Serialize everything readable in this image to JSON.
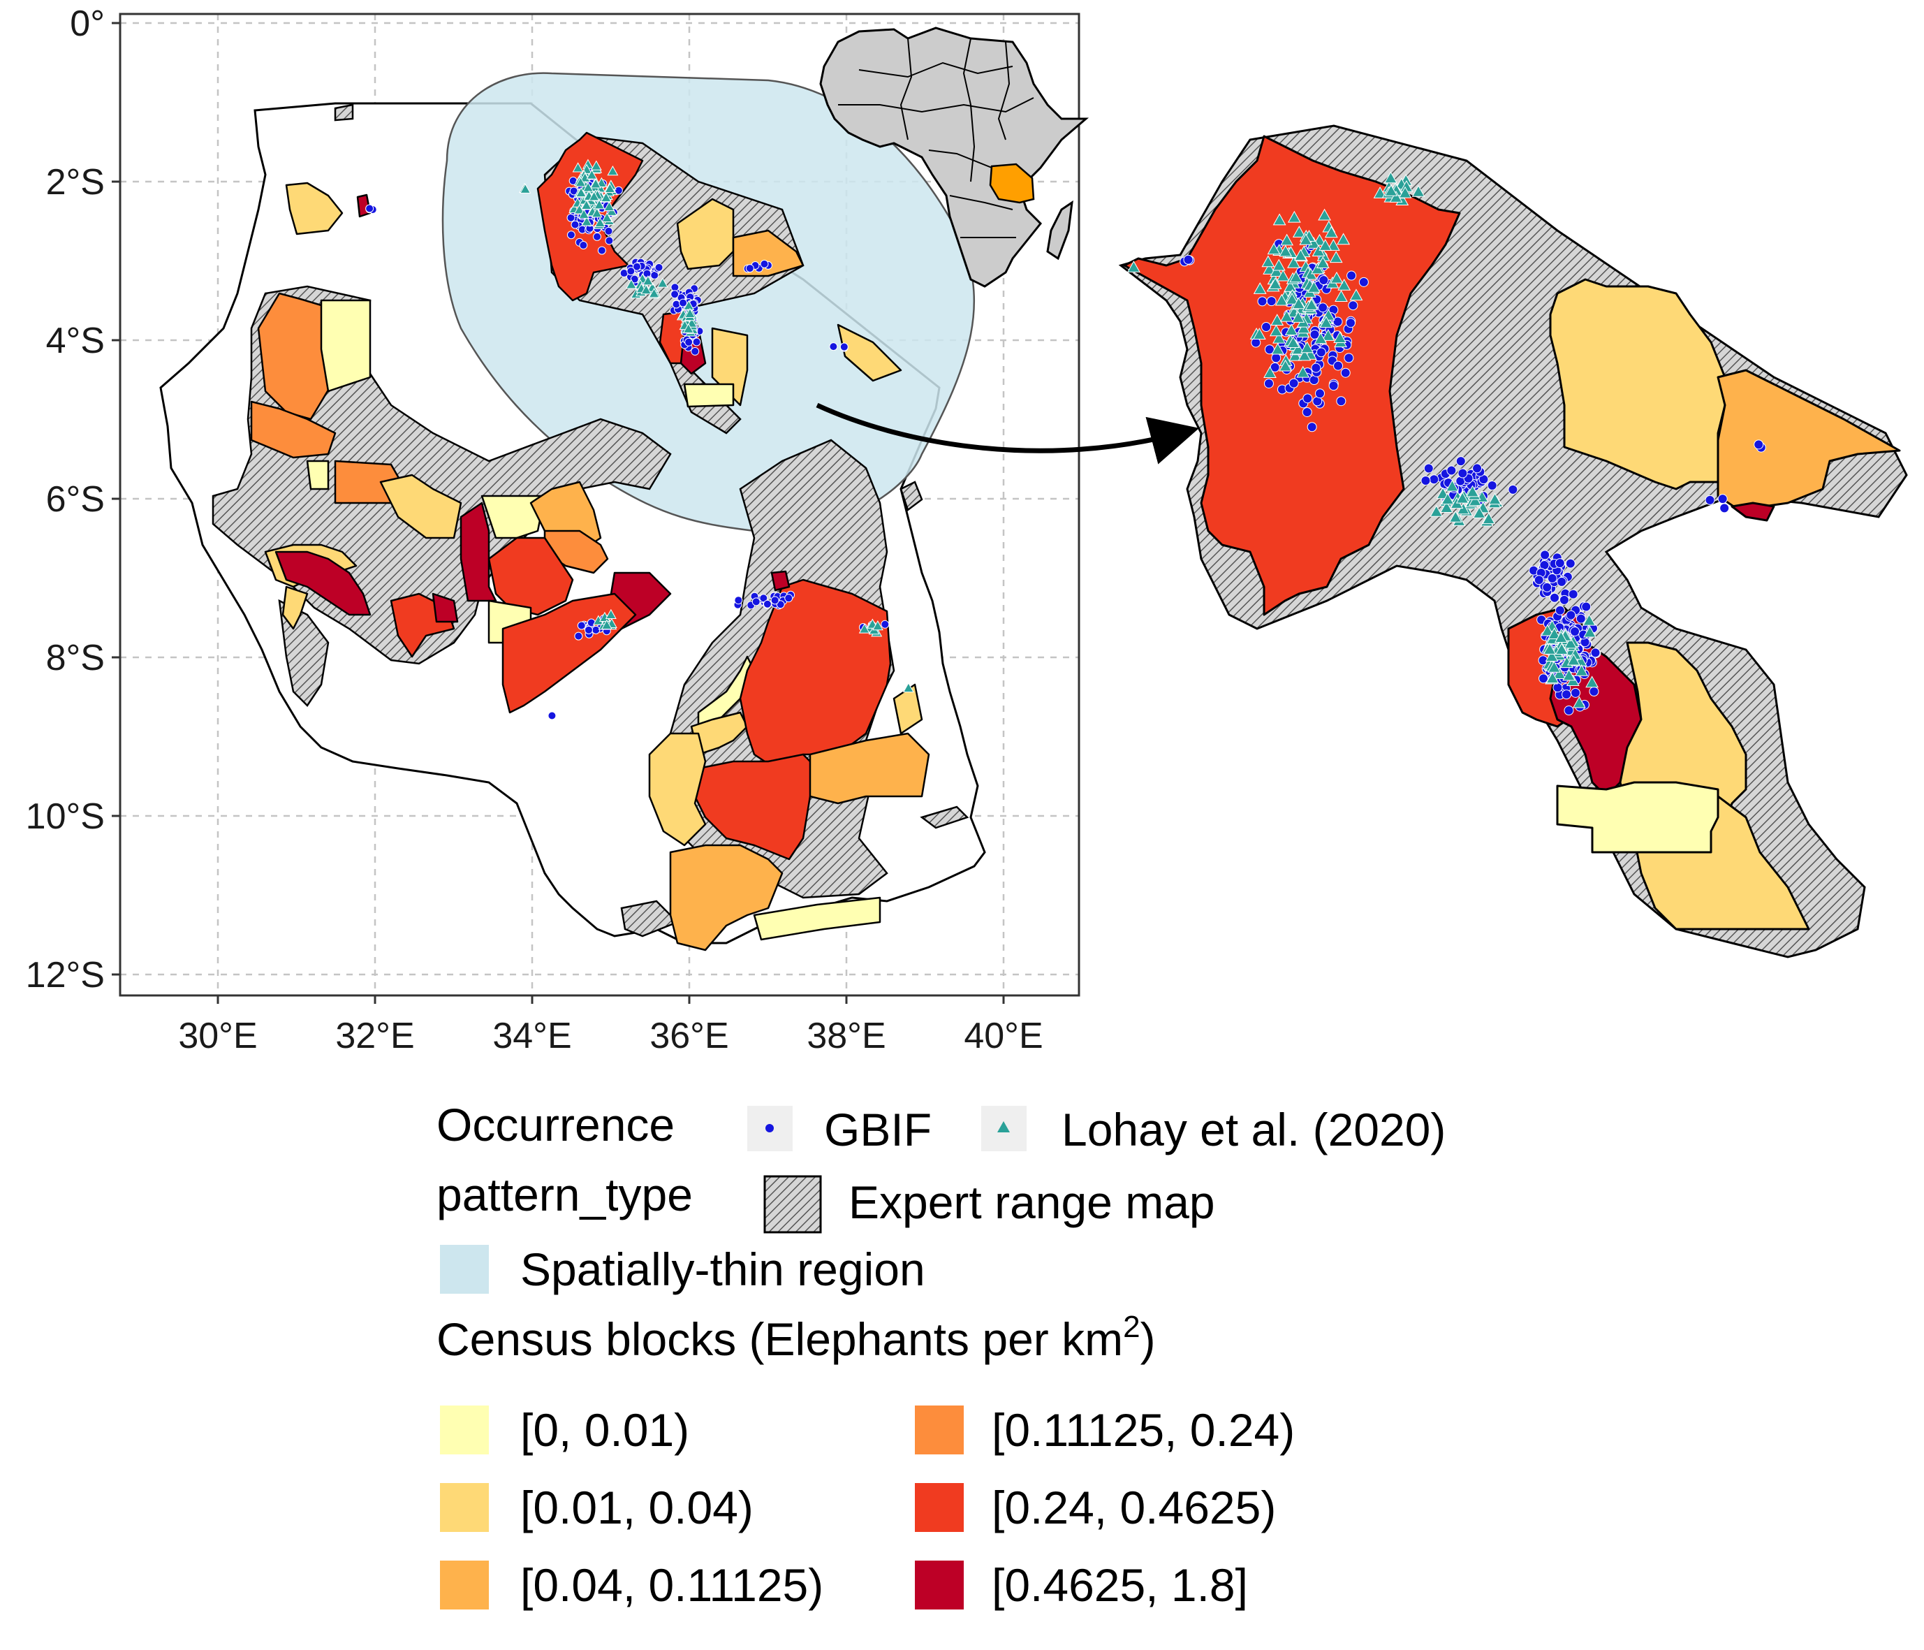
{
  "map": {
    "y_tick_labels": [
      "0°",
      "2°S",
      "4°S",
      "6°S",
      "8°S",
      "10°S",
      "12°S"
    ],
    "x_tick_labels": [
      "30°E",
      "32°E",
      "34°E",
      "36°E",
      "38°E",
      "40°E"
    ],
    "lat_range": [
      0,
      -12.3
    ],
    "lon_range": [
      28.8,
      41
    ],
    "grid": true
  },
  "legend": {
    "occurrence_title": "Occurrence",
    "gbif_label": "GBIF",
    "lohay_label": "Lohay et al. (2020)",
    "pattern_title": "pattern_type",
    "expert_label": "Expert range map",
    "thin_label": "Spatially-thin region",
    "census_title": "Census blocks (Elephants per km",
    "census_sup": "2",
    "census_close": ")",
    "bins": [
      {
        "label": "[0, 0.01)",
        "color": "#ffffb2"
      },
      {
        "label": "[0.01, 0.04)",
        "color": "#fed976"
      },
      {
        "label": "[0.04, 0.11125)",
        "color": "#feb24c"
      },
      {
        "label": "[0.11125, 0.24)",
        "color": "#fd8d3c"
      },
      {
        "label": "[0.24, 0.4625)",
        "color": "#f03b20"
      },
      {
        "label": "[0.4625, 1.8]",
        "color": "#bd0026"
      }
    ]
  },
  "colors": {
    "gbif": "#1515e0",
    "lohay": "#2aa198",
    "thin_region": "#cde6ee",
    "expert_hatch": "#999999",
    "africa_fill": "#cccccc",
    "tanzania_highlight": "#ff9f00"
  }
}
